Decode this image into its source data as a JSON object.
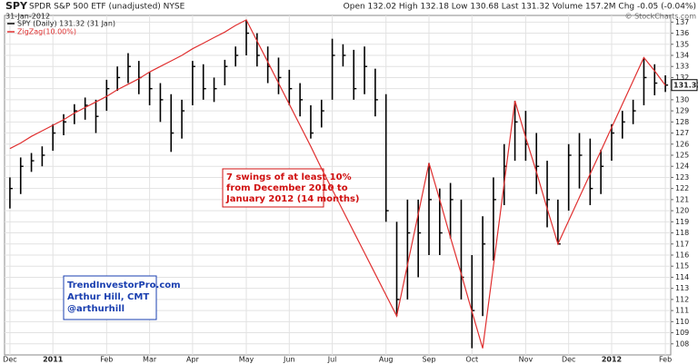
{
  "chart_data": {
    "type": "ohlc",
    "symbol": "SPY",
    "title": "SPDR S&P 500 ETF (unadjusted) NYSE",
    "date": "31-Jan-2012",
    "quote": "Open 132.02  High 132.18  Low 130.68  Last 131.32  Volume 157.2M  Chg -0.05 (-0.04%)",
    "source": "© StockCharts.com",
    "annotation": [
      "7 swings of at least 10%",
      "from December 2010 to",
      "January 2012 (14 months)"
    ],
    "credit": [
      "TrendInvestorPro.com",
      "Arthur Hill, CMT",
      "@arthurhill"
    ],
    "categories": [
      "Dec",
      null,
      null,
      null,
      "2011",
      null,
      null,
      null,
      null,
      "Feb",
      null,
      null,
      null,
      "Mar",
      null,
      null,
      null,
      "Apr",
      null,
      null,
      null,
      null,
      "May",
      null,
      null,
      null,
      "Jun",
      null,
      null,
      null,
      "Jul",
      null,
      null,
      null,
      null,
      "Aug",
      null,
      null,
      null,
      "Sep",
      null,
      null,
      null,
      "Oct",
      null,
      null,
      null,
      null,
      "Nov",
      null,
      null,
      null,
      "Dec",
      null,
      null,
      null,
      "2012",
      null,
      null,
      null,
      null,
      "Feb"
    ],
    "series": [
      {
        "name": "SPY (Daily) 131.32 (31 Jan)",
        "color": "#000000",
        "high": [
          123,
          124.8,
          125.2,
          125.8,
          127.8,
          128.7,
          129.6,
          130.2,
          130,
          131.8,
          133,
          134.2,
          133.5,
          132.5,
          131.5,
          130.5,
          130,
          133.5,
          133.2,
          132,
          133.6,
          134.8,
          137.2,
          136,
          134.8,
          133.8,
          132.7,
          131.5,
          129.5,
          130,
          135.5,
          135,
          134.5,
          134.8,
          132.8,
          130.5,
          119,
          121,
          121,
          124.3,
          122,
          122.5,
          121,
          116,
          119.5,
          123,
          126,
          129.9,
          129,
          127,
          124.5,
          121,
          126,
          127,
          126.5,
          125.5,
          127.8,
          129,
          130,
          133.8,
          133.2,
          132.2
        ],
        "low": [
          120.2,
          121.5,
          123.5,
          124,
          125.4,
          126.8,
          127.8,
          128.2,
          127,
          129,
          130.8,
          131.5,
          130.5,
          129.5,
          128,
          125.3,
          126.5,
          129.5,
          130,
          129.8,
          131.3,
          133,
          134,
          133,
          131.5,
          130.5,
          129.5,
          128.5,
          126.5,
          127.5,
          130,
          133,
          130,
          130.5,
          128.5,
          119,
          110.5,
          112,
          114,
          116,
          116,
          117.5,
          112,
          107.6,
          110.5,
          115.5,
          120.5,
          124.5,
          124.5,
          121.5,
          118.5,
          117,
          120,
          122,
          120.5,
          121.5,
          124.5,
          126.5,
          127.8,
          129.5,
          130.4,
          130.7
        ],
        "close": [
          122,
          124,
          124.5,
          125,
          127,
          128,
          129,
          129.5,
          128.5,
          131,
          132,
          133,
          132,
          131,
          130,
          127,
          129,
          133,
          131,
          131,
          133,
          134,
          136,
          134,
          133,
          132,
          131,
          130,
          127,
          129,
          134,
          134,
          131,
          133,
          130,
          120,
          112,
          118,
          118,
          121,
          118,
          121,
          114,
          111,
          117,
          121,
          124,
          128,
          126,
          124,
          121,
          117,
          125,
          125,
          122,
          124,
          127,
          128,
          129,
          132,
          131.5,
          131.32
        ]
      },
      {
        "name": "ZigZag(10.00%)",
        "color": "#e03030",
        "values": [
          125.6,
          126.1,
          126.7,
          127.2,
          127.7,
          128.2,
          128.8,
          129.3,
          129.8,
          130.3,
          130.9,
          131.4,
          131.9,
          132.5,
          133.0,
          133.5,
          134.0,
          134.6,
          135.1,
          135.6,
          136.1,
          136.7,
          137.2,
          135.3,
          133.4,
          131.5,
          129.6,
          127.7,
          125.8,
          123.8,
          121.9,
          120.0,
          118.1,
          116.2,
          114.3,
          112.4,
          110.5,
          115.1,
          119.7,
          124.3,
          121.0,
          117.6,
          114.3,
          110.9,
          107.6,
          115.0,
          122.5,
          129.9,
          126.6,
          123.5,
          120.2,
          117.0,
          119.1,
          121.2,
          123.3,
          125.4,
          127.5,
          129.6,
          131.7,
          133.8,
          132.6,
          131.3
        ]
      }
    ],
    "ylim": [
      107,
      137.6
    ],
    "yticks": [
      108,
      109,
      110,
      111,
      112,
      113,
      114,
      115,
      116,
      117,
      118,
      119,
      120,
      121,
      122,
      123,
      124,
      125,
      126,
      127,
      128,
      129,
      130,
      131,
      132,
      133,
      134,
      135,
      136,
      137
    ],
    "grid": true
  }
}
